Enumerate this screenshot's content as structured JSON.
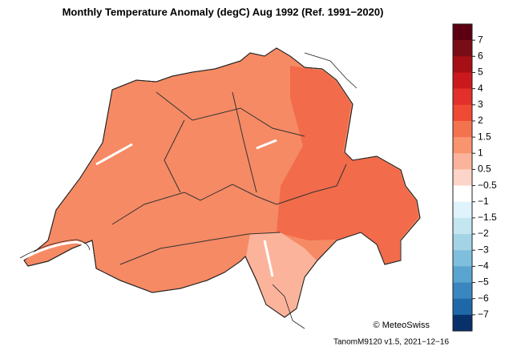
{
  "title": "Monthly Temperature Anomaly (degC) Aug 1992  (Ref. 1991−2020)",
  "colorbar": {
    "labels": [
      "7",
      "6",
      "5",
      "4",
      "3",
      "2",
      "1.5",
      "1",
      "0.5",
      "−0.5",
      "−1",
      "−1.5",
      "−2",
      "−3",
      "−4",
      "−5",
      "−6",
      "−7"
    ],
    "colors": [
      "#5c0011",
      "#7a0c16",
      "#a50f15",
      "#cb181d",
      "#e3302a",
      "#ef4a33",
      "#f4734f",
      "#f8946e",
      "#fbb49b",
      "#fdd5c8",
      "#ffffff",
      "#def3fb",
      "#c3e6f1",
      "#a3d4e6",
      "#7fbfdd",
      "#5aa5d0",
      "#3a87c0",
      "#1f68a8",
      "#08306b"
    ]
  },
  "credit": "© MeteoSwiss",
  "version": "TanomM9120 v1.5, 2021−12−16"
}
